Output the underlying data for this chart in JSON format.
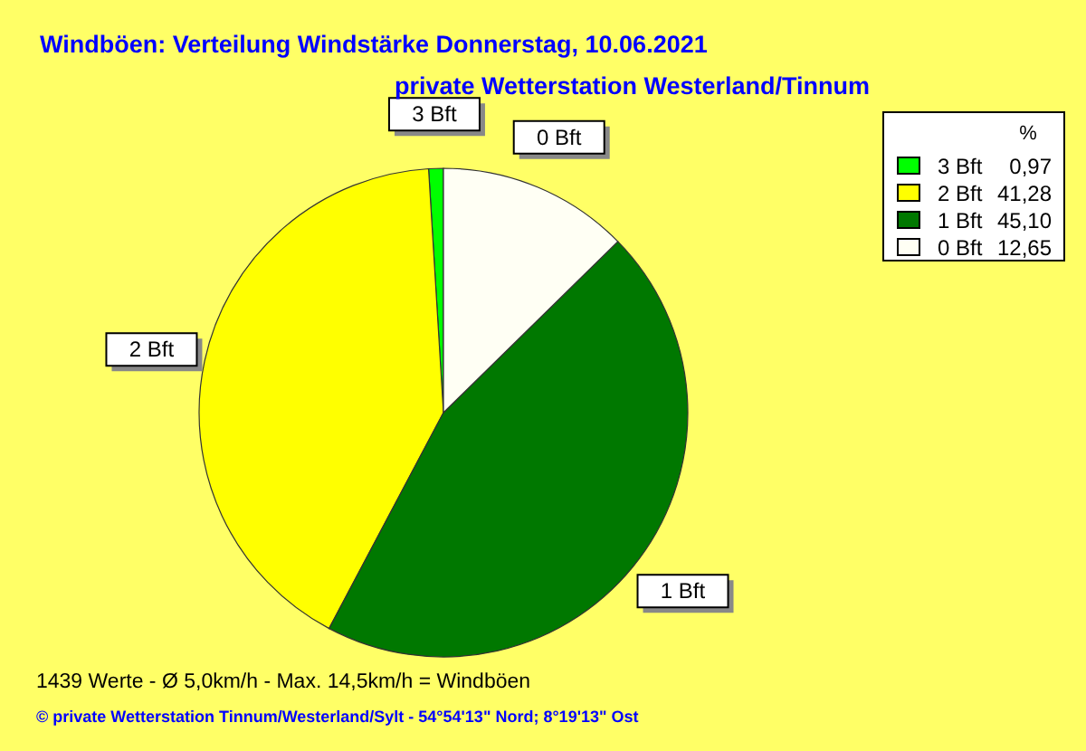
{
  "chart_data": {
    "type": "pie",
    "title": "Windböen: Verteilung Windstärke  Donnerstag, 10.06.2021",
    "subtitle": "private Wetterstation Westerland/Tinnum",
    "legend_title": "%",
    "legend": "top right",
    "categories": [
      "3 Bft",
      "2 Bft",
      "1 Bft",
      "0 Bft"
    ],
    "values": [
      0.97,
      41.28,
      45.1,
      12.65
    ],
    "value_labels": [
      "0,97",
      "41,28",
      "45,10",
      "12,65"
    ],
    "colors": [
      "#00ff00",
      "#ffff00",
      "#007800",
      "#fffff4"
    ],
    "annotations": [
      "1439 Werte   -   Ø 5,0km/h  -  Max. 14,5km/h = Windböen",
      "© private Wetterstation Tinnum/Westerland/Sylt  -  54°54'13\" Nord; 8°19'13\" Ost"
    ]
  }
}
